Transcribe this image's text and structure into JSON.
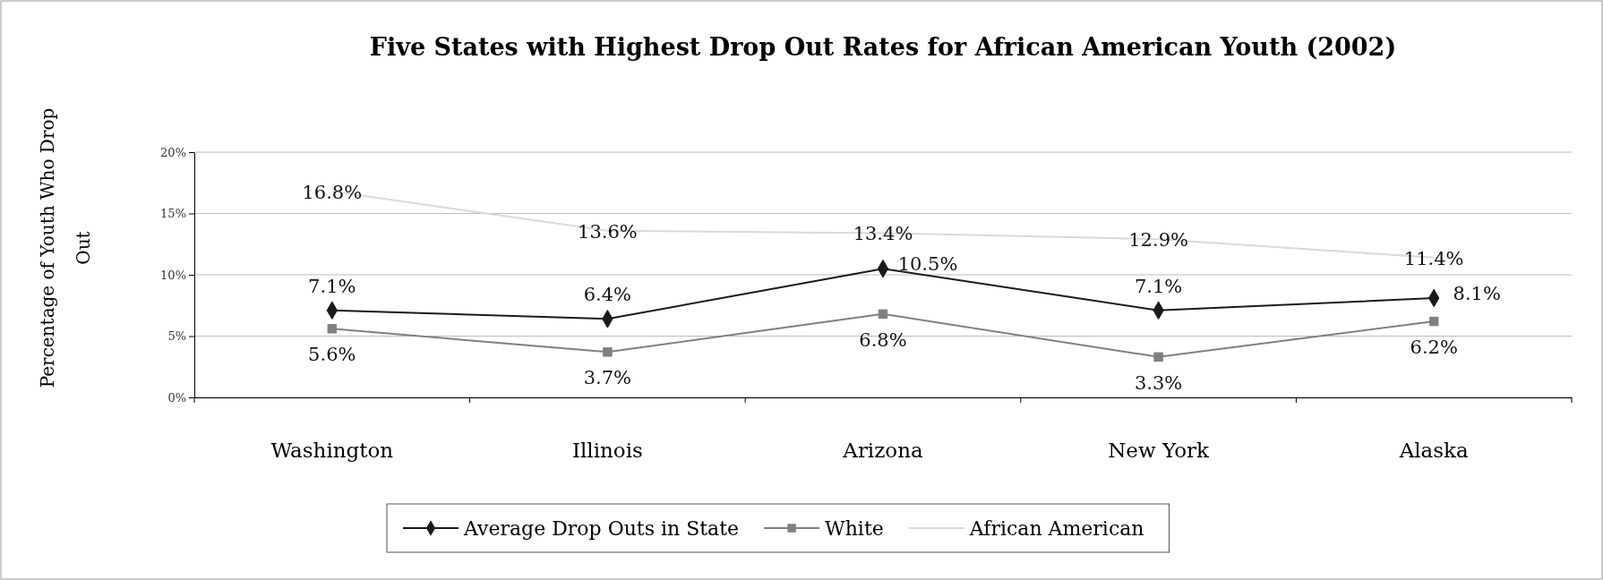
{
  "chart_data": {
    "type": "line",
    "title": "Five States with Highest Drop Out Rates for African American Youth (2002)",
    "ylabel": "Percentage of Youth Who Drop Out",
    "categories": [
      "Washington",
      "Illinois",
      "Arizona",
      "New York",
      "Alaska"
    ],
    "series": [
      {
        "name": "Average Drop Outs in State",
        "color": "#1a1a1a",
        "marker": "diamond",
        "values": [
          7.1,
          6.4,
          10.5,
          7.1,
          8.1
        ],
        "value_labels": [
          "7.1%",
          "6.4%",
          "10.5%",
          "7.1%",
          "8.1%"
        ]
      },
      {
        "name": "White",
        "color": "#808080",
        "marker": "square",
        "values": [
          5.6,
          3.7,
          6.8,
          3.3,
          6.2
        ],
        "value_labels": [
          "5.6%",
          "3.7%",
          "6.8%",
          "3.3%",
          "6.2%"
        ]
      },
      {
        "name": "African American",
        "color": "#d9d9d9",
        "marker": "none",
        "values": [
          16.8,
          13.6,
          13.4,
          12.9,
          11.4
        ],
        "value_labels": [
          "16.8%",
          "13.6%",
          "13.4%",
          "12.9%",
          "11.4%"
        ]
      }
    ],
    "ylim": [
      0,
      20
    ],
    "yticks": [
      {
        "value": 0,
        "label": "0%"
      },
      {
        "value": 5,
        "label": "5%"
      },
      {
        "value": 10,
        "label": "10%"
      },
      {
        "value": 15,
        "label": "15%"
      },
      {
        "value": 20,
        "label": "20%"
      }
    ],
    "grid": "y",
    "legend": "bottom",
    "line_style": "solid"
  }
}
